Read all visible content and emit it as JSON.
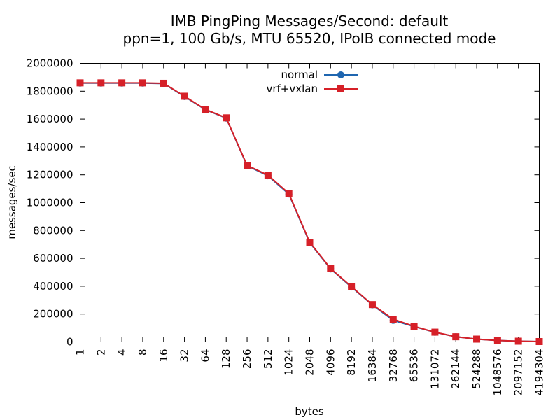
{
  "chart_data": {
    "type": "line",
    "title": "IMB PingPing Messages/Second: default",
    "subtitle": "ppn=1, 100 Gb/s, MTU 65520, IPoIB connected mode",
    "xlabel": "bytes",
    "ylabel": "messages/sec",
    "x_scale": "log2",
    "ylim": [
      0,
      2000000
    ],
    "grid": false,
    "legend_position": "top-center",
    "categories": [
      "1",
      "2",
      "4",
      "8",
      "16",
      "32",
      "64",
      "128",
      "256",
      "512",
      "1024",
      "2048",
      "4096",
      "8192",
      "16384",
      "32768",
      "65536",
      "131072",
      "262144",
      "524288",
      "1048576",
      "2097152",
      "4194304"
    ],
    "y_ticks": [
      "0",
      "200000",
      "400000",
      "600000",
      "800000",
      "1000000",
      "1200000",
      "1400000",
      "1600000",
      "1800000",
      "2000000"
    ],
    "series": [
      {
        "name": "normal",
        "color": "#1f66b0",
        "marker": "circle",
        "values": [
          1858000,
          1858000,
          1858000,
          1858000,
          1855000,
          1762000,
          1668000,
          1607000,
          1266000,
          1193000,
          1062000,
          713000,
          524000,
          394000,
          266000,
          155000,
          110000,
          69000,
          37000,
          20000,
          10000,
          5000,
          2500
        ]
      },
      {
        "name": "vrf+vxlan",
        "color": "#d62028",
        "marker": "square",
        "values": [
          1860000,
          1860000,
          1860000,
          1860000,
          1857000,
          1764000,
          1670000,
          1609000,
          1268000,
          1198000,
          1066000,
          716000,
          527000,
          397000,
          268000,
          163000,
          112000,
          70000,
          37000,
          20000,
          10000,
          5000,
          2500
        ]
      }
    ]
  }
}
